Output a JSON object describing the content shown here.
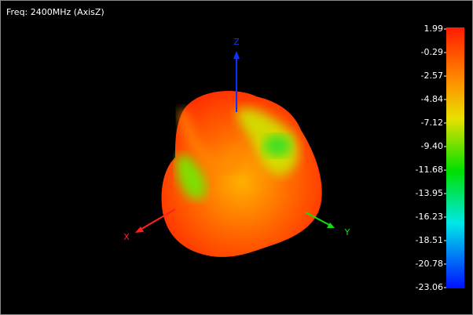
{
  "header": {
    "title": "Freq: 2400MHz (AxisZ)"
  },
  "axes": {
    "x": "X",
    "y": "Y",
    "z": "Z"
  },
  "colorbar": {
    "ticks": [
      1.99,
      -0.29,
      -2.57,
      -4.84,
      -7.12,
      {
        "value": -9.4,
        "label": "-9.40"
      },
      -11.68,
      -13.95,
      -16.23,
      -18.51,
      -20.78,
      -23.06
    ]
  }
}
